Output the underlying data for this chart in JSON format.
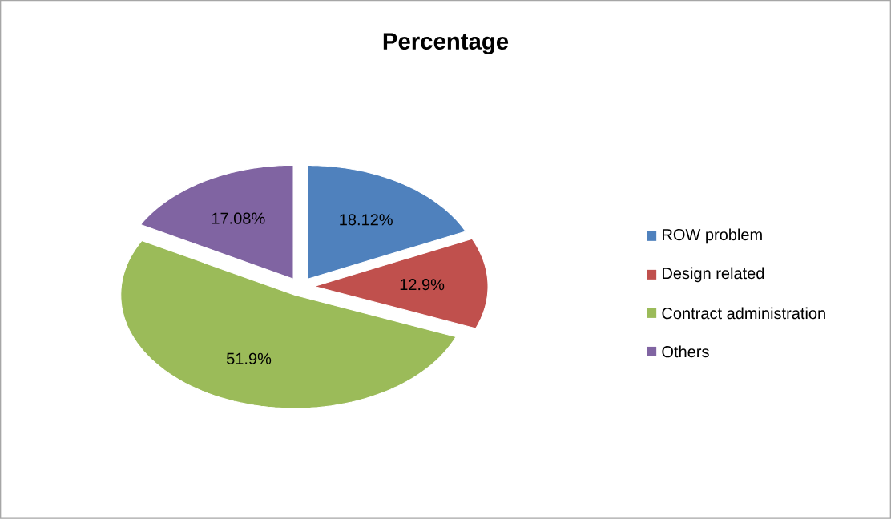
{
  "chart_data": {
    "type": "pie",
    "title": "Percentage",
    "categories": [
      "ROW problem",
      "Design related",
      "Contract administration",
      "Others"
    ],
    "values": [
      18.12,
      12.9,
      51.9,
      17.08
    ],
    "colors": [
      "#4f81bd",
      "#c0504d",
      "#9bbb59",
      "#8064a2"
    ],
    "value_labels": [
      "18.12%",
      "12.9%",
      "51.9%",
      "17.08%"
    ],
    "legend": "right"
  }
}
